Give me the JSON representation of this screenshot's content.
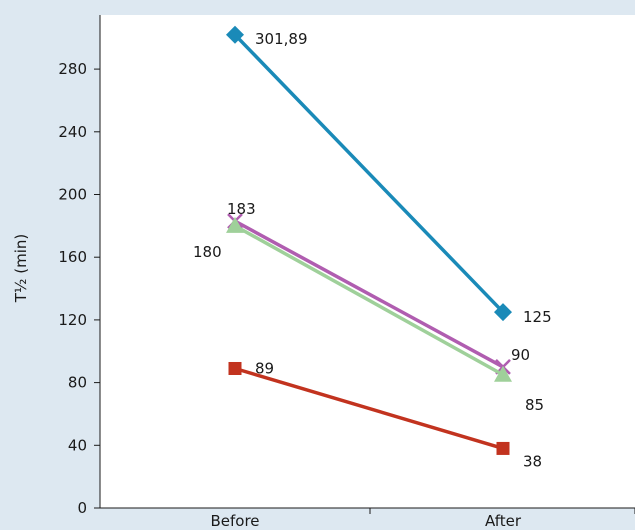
{
  "chart_data": {
    "type": "line",
    "categories": [
      "Before",
      "After"
    ],
    "ylabel": "T½ (min)",
    "ylim": [
      0,
      300
    ],
    "yticks": [
      0,
      40,
      80,
      120,
      160,
      200,
      240,
      280
    ],
    "grid": false,
    "series": [
      {
        "values": [
          301.89,
          125
        ],
        "labels": [
          "301,89",
          "125"
        ],
        "color": "#1a8ab8",
        "marker": "diamond"
      },
      {
        "values": [
          183,
          90
        ],
        "labels": [
          "183",
          "90"
        ],
        "color": "#b05db0",
        "marker": "x"
      },
      {
        "values": [
          180,
          85
        ],
        "labels": [
          "180",
          "85"
        ],
        "color": "#9fd09a",
        "marker": "triangle"
      },
      {
        "values": [
          89,
          38
        ],
        "labels": [
          "89",
          "38"
        ],
        "color": "#c2331f",
        "marker": "square"
      }
    ]
  }
}
